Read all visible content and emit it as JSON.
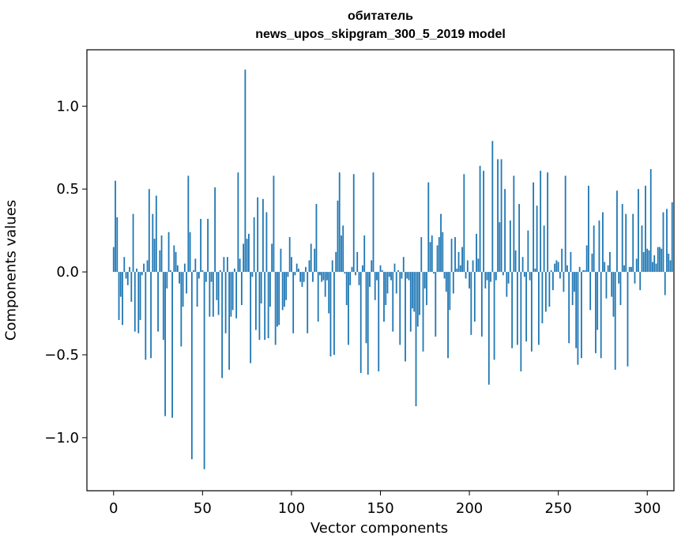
{
  "chart_data": {
    "type": "bar",
    "title": "обитатель",
    "subtitle": "news_upos_skipgram_300_5_2019 model",
    "xlabel": "Vector components",
    "ylabel": "Components values",
    "xlim": [
      -15,
      315
    ],
    "ylim": [
      -1.32,
      1.34
    ],
    "xticks": [
      0,
      50,
      100,
      150,
      200,
      250,
      300
    ],
    "xtick_labels": [
      "0",
      "50",
      "100",
      "150",
      "200",
      "250",
      "300"
    ],
    "yticks": [
      -1.0,
      -0.5,
      0.0,
      0.5,
      1.0
    ],
    "ytick_labels": [
      "−1.0",
      "−0.5",
      "0.0",
      "0.5",
      "1.0"
    ],
    "grid": false,
    "bar_color": "#1f77b4",
    "values": [
      0.15,
      0.55,
      0.33,
      -0.29,
      -0.15,
      -0.32,
      0.09,
      -0.04,
      -0.08,
      0.03,
      -0.18,
      0.35,
      -0.36,
      0.02,
      -0.37,
      -0.29,
      -0.02,
      0.05,
      -0.53,
      0.07,
      0.5,
      -0.52,
      0.35,
      0.2,
      0.46,
      -0.36,
      0.13,
      0.22,
      -0.41,
      -0.87,
      -0.1,
      0.24,
      0.01,
      -0.88,
      0.16,
      0.12,
      0.04,
      -0.07,
      -0.45,
      -0.21,
      0.05,
      -0.13,
      0.58,
      0.24,
      -1.13,
      0.01,
      0.08,
      -0.21,
      -0.04,
      0.32,
      0.01,
      -1.19,
      -0.06,
      0.32,
      -0.27,
      -0.06,
      -0.27,
      0.51,
      -0.17,
      -0.26,
      0.01,
      -0.64,
      0.09,
      -0.37,
      0.09,
      -0.59,
      -0.27,
      -0.23,
      0.02,
      -0.28,
      0.6,
      0.08,
      -0.2,
      0.17,
      1.22,
      0.2,
      0.23,
      -0.55,
      -0.03,
      0.33,
      -0.35,
      0.45,
      -0.41,
      -0.19,
      0.44,
      -0.41,
      0.36,
      -0.4,
      -0.21,
      0.17,
      0.58,
      -0.44,
      -0.33,
      -0.32,
      0.14,
      -0.23,
      -0.21,
      -0.17,
      -0.03,
      0.21,
      0.09,
      -0.37,
      -0.02,
      0.05,
      0.02,
      -0.06,
      -0.09,
      -0.06,
      0.03,
      -0.37,
      0.07,
      0.17,
      -0.06,
      0.14,
      0.41,
      -0.3,
      -0.02,
      -0.06,
      -0.05,
      -0.15,
      -0.05,
      -0.25,
      -0.51,
      0.07,
      -0.5,
      0.12,
      0.43,
      0.6,
      0.22,
      0.28,
      -0.01,
      -0.2,
      -0.44,
      -0.08,
      0.03,
      0.59,
      -0.02,
      0.12,
      -0.08,
      -0.61,
      0.04,
      0.22,
      -0.43,
      -0.62,
      -0.09,
      0.07,
      0.6,
      -0.17,
      -0.05,
      -0.6,
      0.04,
      0.01,
      -0.3,
      -0.2,
      -0.13,
      -0.03,
      -0.05,
      -0.36,
      0.05,
      -0.13,
      0.01,
      -0.44,
      -0.04,
      0.09,
      -0.54,
      -0.04,
      -0.05,
      -0.36,
      -0.22,
      -0.24,
      -0.81,
      -0.33,
      -0.26,
      0.21,
      -0.48,
      -0.1,
      -0.2,
      0.54,
      0.18,
      0.22,
      -0.01,
      -0.39,
      0.16,
      0.21,
      0.35,
      0.24,
      -0.04,
      -0.12,
      -0.52,
      -0.23,
      0.2,
      -0.13,
      0.21,
      0.02,
      0.12,
      0.04,
      0.15,
      0.59,
      -0.04,
      0.07,
      -0.1,
      -0.38,
      0.07,
      -0.3,
      0.23,
      0.08,
      0.64,
      -0.39,
      0.61,
      -0.1,
      -0.05,
      -0.68,
      -0.06,
      0.79,
      -0.53,
      -0.05,
      0.68,
      0.3,
      0.68,
      -0.02,
      0.5,
      -0.15,
      -0.07,
      0.31,
      -0.46,
      0.58,
      0.13,
      -0.44,
      0.41,
      -0.6,
      0.09,
      -0.03,
      -0.42,
      0.25,
      -0.05,
      -0.48,
      0.54,
      0.02,
      0.4,
      -0.44,
      0.61,
      -0.31,
      0.28,
      -0.24,
      0.6,
      -0.21,
      0.01,
      -0.11,
      0.05,
      0.07,
      0.06,
      -0.04,
      0.14,
      -0.12,
      0.58,
      0.04,
      -0.43,
      0.12,
      -0.2,
      -0.12,
      -0.46,
      -0.56,
      0.03,
      -0.52,
      0.01,
      0.01,
      0.16,
      0.52,
      -0.23,
      0.11,
      0.28,
      -0.49,
      -0.35,
      0.31,
      -0.52,
      0.36,
      0.06,
      -0.16,
      0.04,
      0.12,
      -0.15,
      -0.27,
      -0.59,
      0.49,
      -0.07,
      -0.2,
      0.41,
      0.04,
      0.35,
      -0.57,
      0.03,
      0.03,
      0.35,
      -0.07,
      0.08,
      0.5,
      -0.11,
      0.28,
      0.12,
      0.52,
      0.14,
      0.13,
      0.62,
      0.06,
      0.1,
      0.05,
      0.15,
      0.15,
      0.14,
      0.36,
      -0.14,
      0.38,
      0.11,
      0.07,
      0.42
    ]
  }
}
